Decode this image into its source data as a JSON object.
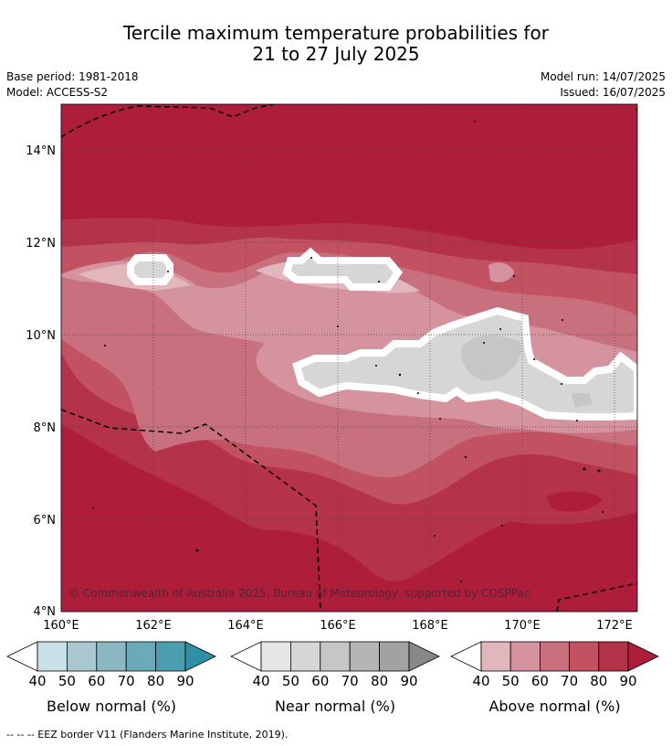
{
  "title": {
    "line1": "Tercile maximum temperature probabilities for",
    "line2": "21 to 27 July 2025"
  },
  "meta": {
    "base_period": "Base period: 1981-2018",
    "model": "Model: ACCESS-S2",
    "model_run": "Model run: 14/07/2025",
    "issued": "Issued: 16/07/2025"
  },
  "map": {
    "lat_labels": [
      "14°N",
      "12°N",
      "10°N",
      "8°N",
      "6°N",
      "4°N"
    ],
    "lon_labels": [
      "160°E",
      "162°E",
      "164°E",
      "166°E",
      "168°E",
      "170°E",
      "172°E"
    ],
    "copyright": "© Commonwealth of Australia 2025, Bureau of Meteorology, supported by COSPPac"
  },
  "colorbars": [
    {
      "name": "below-normal",
      "title": "Below normal (%)",
      "ticks": [
        "40",
        "50",
        "60",
        "70",
        "80",
        "90"
      ],
      "colors": [
        "#ffffff",
        "#c9e0e6",
        "#a9c8cf",
        "#8bb7c3",
        "#6aaab9",
        "#4a9eb0",
        "#2f8fa6"
      ]
    },
    {
      "name": "near-normal",
      "title": "Near normal (%)",
      "ticks": [
        "40",
        "50",
        "60",
        "70",
        "80",
        "90"
      ],
      "colors": [
        "#ffffff",
        "#e6e6e6",
        "#d6d6d6",
        "#c6c6c6",
        "#b5b5b5",
        "#a2a2a2",
        "#888888"
      ]
    },
    {
      "name": "above-normal",
      "title": "Above normal (%)",
      "ticks": [
        "40",
        "50",
        "60",
        "70",
        "80",
        "90"
      ],
      "colors": [
        "#ffffff",
        "#e2b6bd",
        "#d4939e",
        "#c9707e",
        "#c25262",
        "#b5334a",
        "#ae1d3a"
      ]
    }
  ],
  "footer": "--  --  -- EEZ border V11 (Flanders Marine Institute, 2019)."
}
